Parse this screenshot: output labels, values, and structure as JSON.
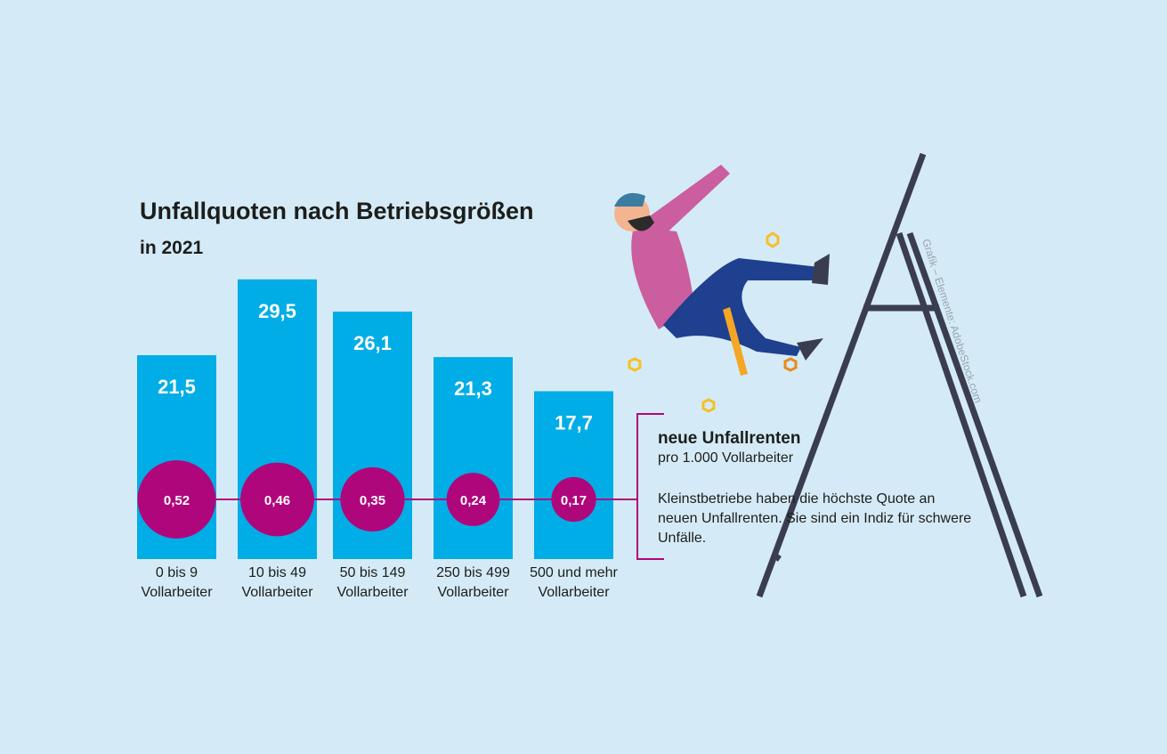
{
  "chart_data": {
    "type": "bar",
    "title": "Unfallquoten nach Betriebsgrößen",
    "subtitle": "in 2021",
    "categories": [
      "0 bis 9\nVollarbeiter",
      "10 bis 49\nVollarbeiter",
      "50 bis 149\nVollarbeiter",
      "250 bis 499\nVollarbeiter",
      "500 und mehr\nVollarbeiter"
    ],
    "values": [
      21.5,
      29.5,
      26.1,
      21.3,
      17.7
    ],
    "value_labels": [
      "21,5",
      "29,5",
      "26,1",
      "21,3",
      "17,7"
    ],
    "color": "#00ade6",
    "bubbles": {
      "name": "neue Unfallrenten",
      "description": "pro 1.000 Vollarbeiter",
      "values": [
        0.52,
        0.46,
        0.35,
        0.24,
        0.17
      ],
      "value_labels": [
        "0,52",
        "0,46",
        "0,35",
        "0,24",
        "0,17"
      ],
      "color": "#b0067c"
    },
    "note": "Kleinstbetriebe haben die höchste Quote an neuen Unfallrenten. Sie sind ein Indiz für schwere Unfälle.",
    "credit": "Grafik – Elemente: AdobeStock.com"
  }
}
